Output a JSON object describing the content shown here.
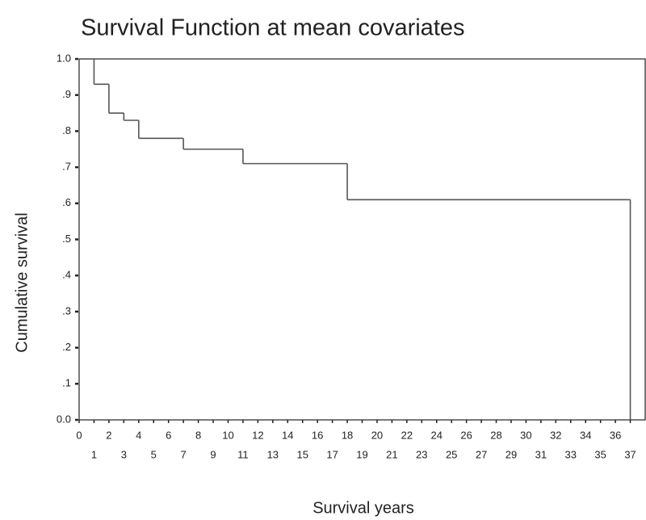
{
  "chart_data": {
    "type": "step",
    "title": "Survival Function at mean covariates",
    "xlabel": "Survival years",
    "ylabel": "Cumulative survival",
    "x": [
      0,
      1,
      2,
      3,
      4,
      7,
      11,
      18,
      37
    ],
    "values": [
      1.0,
      0.93,
      0.85,
      0.83,
      0.78,
      0.75,
      0.71,
      0.61,
      0
    ],
    "color": "#555555",
    "xlim": [
      0,
      38
    ],
    "xticks": [
      0,
      1,
      2,
      3,
      4,
      5,
      6,
      7,
      8,
      9,
      10,
      11,
      12,
      13,
      14,
      15,
      16,
      17,
      18,
      19,
      20,
      21,
      22,
      23,
      24,
      25,
      26,
      27,
      28,
      29,
      30,
      31,
      32,
      33,
      34,
      35,
      36,
      37
    ],
    "ylim": [
      0,
      1
    ],
    "yticks": [
      {
        "value": 0,
        "label": "0.0"
      },
      {
        "value": 0.1,
        "label": ".1"
      },
      {
        "value": 0.2,
        "label": ".2"
      },
      {
        "value": 0.3,
        "label": ".3"
      },
      {
        "value": 0.4,
        "label": ".4"
      },
      {
        "value": 0.5,
        "label": ".5"
      },
      {
        "value": 0.6,
        "label": ".6"
      },
      {
        "value": 0.7,
        "label": ".7"
      },
      {
        "value": 0.8,
        "label": ".8"
      },
      {
        "value": 0.9,
        "label": ".9"
      },
      {
        "value": 1,
        "label": "1.0"
      }
    ]
  }
}
